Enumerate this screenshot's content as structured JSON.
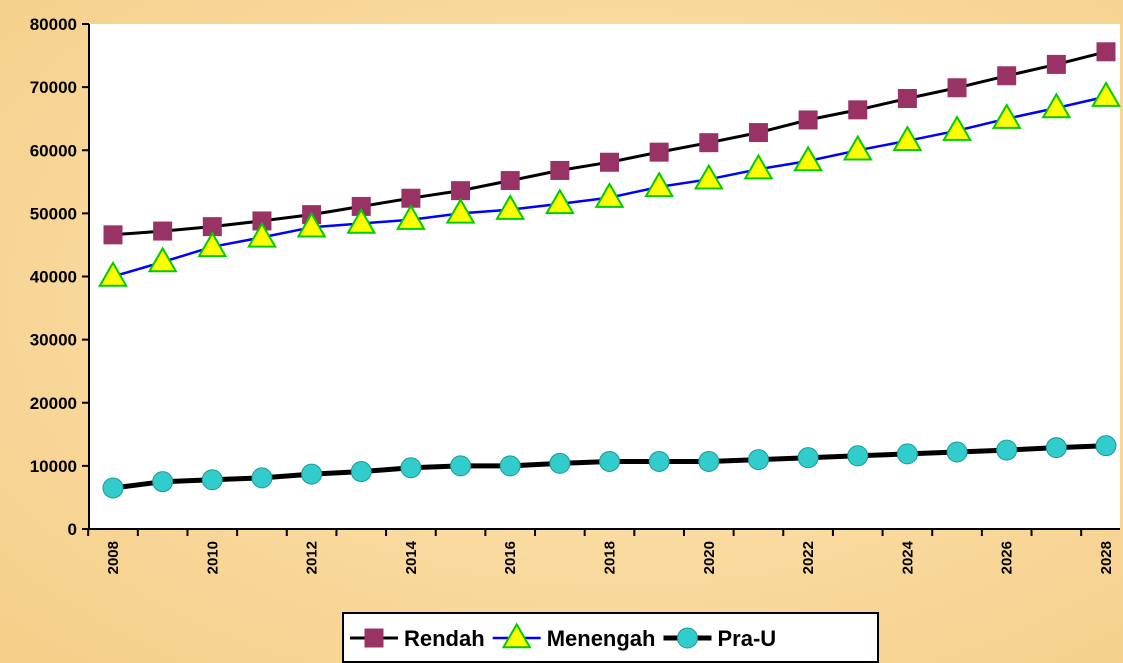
{
  "chart_data": {
    "type": "line",
    "title": "",
    "xlabel": "",
    "ylabel": "",
    "x": [
      2008,
      2009,
      2010,
      2011,
      2012,
      2013,
      2014,
      2015,
      2016,
      2017,
      2018,
      2019,
      2020,
      2021,
      2022,
      2023,
      2024,
      2025,
      2026,
      2027,
      2028
    ],
    "x_tick_labels": [
      "2008",
      "2010",
      "2012",
      "2014",
      "2016",
      "2018",
      "2020",
      "2022",
      "2024",
      "2026",
      "2028"
    ],
    "ylim": [
      0,
      80000
    ],
    "y_ticks": [
      "0",
      "10000",
      "20000",
      "30000",
      "40000",
      "50000",
      "60000",
      "70000",
      "80000"
    ],
    "grid": false,
    "legend_position": "bottom",
    "series": [
      {
        "name": "Rendah",
        "marker": "square",
        "line_color": "#000000",
        "marker_color": "#993366",
        "values": [
          46600,
          47200,
          47900,
          48800,
          49800,
          51100,
          52400,
          53600,
          55200,
          56800,
          58100,
          59700,
          61200,
          62800,
          64800,
          66400,
          68200,
          69900,
          71800,
          73600,
          75600
        ]
      },
      {
        "name": "Menengah",
        "marker": "triangle",
        "line_color": "#0000ff",
        "marker_color": "#ffff00",
        "marker_edge": "#00cc00",
        "values": [
          40000,
          42300,
          44700,
          46200,
          47800,
          48400,
          49000,
          50000,
          50600,
          51500,
          52500,
          54200,
          55400,
          57000,
          58300,
          60000,
          61500,
          63100,
          65000,
          66700,
          68500
        ]
      },
      {
        "name": "Pra-U",
        "marker": "circle",
        "line_color": "#000000",
        "marker_color": "#33cccc",
        "values": [
          6500,
          7500,
          7800,
          8100,
          8700,
          9100,
          9700,
          10000,
          10000,
          10400,
          10700,
          10700,
          10700,
          11000,
          11300,
          11600,
          11900,
          12200,
          12500,
          12900,
          13200
        ]
      }
    ]
  }
}
